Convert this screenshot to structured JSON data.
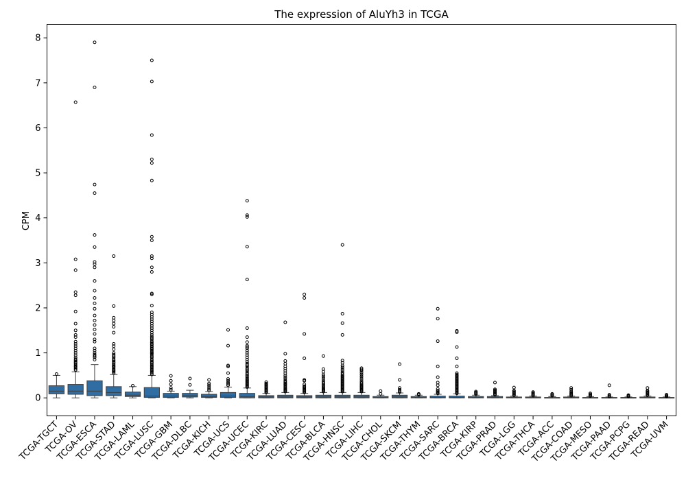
{
  "chart_data": {
    "type": "box",
    "title": "The expression of AluYh3 in TCGA",
    "xlabel": "",
    "ylabel": "CPM",
    "ylim": [
      -0.4,
      8.3
    ],
    "yticks": [
      0,
      1,
      2,
      3,
      4,
      5,
      6,
      7,
      8
    ],
    "grid": false,
    "box_color": "#2f6da3",
    "categories": [
      "TCGA-TGCT",
      "TCGA-OV",
      "TCGA-ESCA",
      "TCGA-STAD",
      "TCGA-LAML",
      "TCGA-LUSC",
      "TCGA-GBM",
      "TCGA-DLBC",
      "TCGA-KICH",
      "TCGA-UCS",
      "TCGA-UCEC",
      "TCGA-KIRC",
      "TCGA-LUAD",
      "TCGA-CESC",
      "TCGA-BLCA",
      "TCGA-HNSC",
      "TCGA-LIHC",
      "TCGA-CHOL",
      "TCGA-SKCM",
      "TCGA-THYM",
      "TCGA-SARC",
      "TCGA-BRCA",
      "TCGA-KIRP",
      "TCGA-PRAD",
      "TCGA-LGG",
      "TCGA-THCA",
      "TCGA-ACC",
      "TCGA-COAD",
      "TCGA-MESO",
      "TCGA-PAAD",
      "TCGA-PCPG",
      "TCGA-READ",
      "TCGA-UVM"
    ],
    "boxes": [
      {
        "whislo": 0.0,
        "q1": 0.09,
        "med": 0.15,
        "q3": 0.27,
        "whishi": 0.5,
        "fliers": [
          0.53
        ]
      },
      {
        "whislo": 0.0,
        "q1": 0.08,
        "med": 0.15,
        "q3": 0.3,
        "whishi": 0.58,
        "fliers": [
          0.62,
          0.65,
          0.68,
          0.7,
          0.72,
          0.75,
          0.78,
          0.8,
          0.83,
          0.86,
          0.9,
          0.95,
          1.0,
          1.05,
          1.1,
          1.15,
          1.2,
          1.25,
          1.35,
          1.4,
          1.5,
          1.65,
          1.92,
          2.28,
          2.35,
          2.84,
          3.08,
          6.57
        ]
      },
      {
        "whislo": 0.0,
        "q1": 0.05,
        "med": 0.15,
        "q3": 0.38,
        "whishi": 0.74,
        "fliers": [
          0.85,
          0.9,
          0.93,
          0.96,
          1.0,
          1.05,
          1.1,
          1.25,
          1.3,
          1.42,
          1.52,
          1.62,
          1.72,
          1.83,
          1.98,
          2.1,
          2.22,
          2.38,
          2.6,
          2.9,
          2.97,
          3.02,
          3.35,
          3.62,
          4.55,
          4.74,
          6.9,
          7.9
        ]
      },
      {
        "whislo": 0.0,
        "q1": 0.05,
        "med": 0.12,
        "q3": 0.25,
        "whishi": 0.52,
        "fliers": [
          0.55,
          0.58,
          0.6,
          0.62,
          0.65,
          0.68,
          0.7,
          0.72,
          0.75,
          0.78,
          0.8,
          0.83,
          0.86,
          0.9,
          0.93,
          0.96,
          1.0,
          1.08,
          1.15,
          1.2,
          1.45,
          1.58,
          1.65,
          1.72,
          1.78,
          2.04,
          3.15
        ]
      },
      {
        "whislo": 0.0,
        "q1": 0.03,
        "med": 0.06,
        "q3": 0.13,
        "whishi": 0.25,
        "fliers": [
          0.27
        ]
      },
      {
        "whislo": 0.0,
        "q1": 0.01,
        "med": 0.04,
        "q3": 0.23,
        "whishi": 0.5,
        "fliers": [
          0.52,
          0.55,
          0.58,
          0.6,
          0.62,
          0.65,
          0.68,
          0.7,
          0.72,
          0.75,
          0.78,
          0.8,
          0.83,
          0.86,
          0.9,
          0.92,
          0.95,
          0.98,
          1.0,
          1.02,
          1.05,
          1.08,
          1.1,
          1.13,
          1.15,
          1.18,
          1.2,
          1.23,
          1.26,
          1.3,
          1.33,
          1.36,
          1.4,
          1.45,
          1.5,
          1.55,
          1.6,
          1.65,
          1.7,
          1.75,
          1.8,
          1.85,
          1.9,
          2.05,
          2.3,
          2.32,
          2.8,
          2.9,
          3.1,
          3.15,
          3.5,
          3.58,
          4.83,
          5.22,
          5.3,
          5.84,
          7.03,
          7.5
        ]
      },
      {
        "whislo": 0.0,
        "q1": 0.01,
        "med": 0.04,
        "q3": 0.1,
        "whishi": 0.15,
        "fliers": [
          0.18,
          0.22,
          0.3,
          0.38,
          0.49
        ]
      },
      {
        "whislo": 0.0,
        "q1": 0.02,
        "med": 0.05,
        "q3": 0.1,
        "whishi": 0.17,
        "fliers": [
          0.29,
          0.43
        ]
      },
      {
        "whislo": 0.0,
        "q1": 0.01,
        "med": 0.03,
        "q3": 0.08,
        "whishi": 0.14,
        "fliers": [
          0.17,
          0.2,
          0.24,
          0.28,
          0.32,
          0.4
        ]
      },
      {
        "whislo": 0.0,
        "q1": 0.01,
        "med": 0.04,
        "q3": 0.12,
        "whishi": 0.24,
        "fliers": [
          0.28,
          0.31,
          0.34,
          0.38,
          0.42,
          0.55,
          0.7,
          0.72,
          1.16,
          1.51
        ]
      },
      {
        "whislo": 0.0,
        "q1": 0.0,
        "med": 0.03,
        "q3": 0.1,
        "whishi": 0.22,
        "fliers": [
          0.24,
          0.26,
          0.28,
          0.3,
          0.32,
          0.34,
          0.36,
          0.38,
          0.4,
          0.42,
          0.45,
          0.48,
          0.5,
          0.53,
          0.56,
          0.6,
          0.63,
          0.66,
          0.7,
          0.73,
          0.76,
          0.8,
          0.85,
          0.9,
          0.95,
          1.0,
          1.05,
          1.1,
          1.13,
          1.16,
          1.24,
          1.35,
          1.55,
          2.63,
          3.36,
          4.02,
          4.06,
          4.38
        ]
      },
      {
        "whislo": 0.0,
        "q1": 0.0,
        "med": 0.02,
        "q3": 0.05,
        "whishi": 0.1,
        "fliers": [
          0.12,
          0.14,
          0.16,
          0.18,
          0.2,
          0.22,
          0.24,
          0.26,
          0.28,
          0.3,
          0.32,
          0.35
        ]
      },
      {
        "whislo": 0.0,
        "q1": 0.0,
        "med": 0.02,
        "q3": 0.06,
        "whishi": 0.12,
        "fliers": [
          0.14,
          0.16,
          0.18,
          0.2,
          0.22,
          0.25,
          0.28,
          0.3,
          0.32,
          0.35,
          0.38,
          0.42,
          0.46,
          0.5,
          0.55,
          0.6,
          0.65,
          0.7,
          0.76,
          0.82,
          0.98,
          1.68
        ]
      },
      {
        "whislo": 0.0,
        "q1": 0.0,
        "med": 0.02,
        "q3": 0.05,
        "whishi": 0.1,
        "fliers": [
          0.12,
          0.14,
          0.16,
          0.18,
          0.2,
          0.22,
          0.24,
          0.26,
          0.3,
          0.38,
          0.4,
          0.88,
          1.42,
          2.22,
          2.3
        ]
      },
      {
        "whislo": 0.0,
        "q1": 0.0,
        "med": 0.02,
        "q3": 0.06,
        "whishi": 0.12,
        "fliers": [
          0.14,
          0.16,
          0.18,
          0.2,
          0.22,
          0.25,
          0.28,
          0.3,
          0.33,
          0.36,
          0.4,
          0.44,
          0.48,
          0.52,
          0.58,
          0.64,
          0.93
        ]
      },
      {
        "whislo": 0.0,
        "q1": 0.0,
        "med": 0.02,
        "q3": 0.06,
        "whishi": 0.12,
        "fliers": [
          0.14,
          0.16,
          0.18,
          0.2,
          0.22,
          0.24,
          0.26,
          0.28,
          0.3,
          0.32,
          0.34,
          0.36,
          0.38,
          0.4,
          0.42,
          0.44,
          0.46,
          0.48,
          0.5,
          0.53,
          0.56,
          0.6,
          0.64,
          0.68,
          0.72,
          0.78,
          0.83,
          1.4,
          1.66,
          1.87,
          3.4
        ]
      },
      {
        "whislo": 0.0,
        "q1": 0.0,
        "med": 0.02,
        "q3": 0.06,
        "whishi": 0.12,
        "fliers": [
          0.14,
          0.16,
          0.18,
          0.2,
          0.22,
          0.24,
          0.26,
          0.28,
          0.3,
          0.33,
          0.36,
          0.4,
          0.44,
          0.48,
          0.52,
          0.56,
          0.6,
          0.63,
          0.66
        ]
      },
      {
        "whislo": 0.0,
        "q1": 0.0,
        "med": 0.01,
        "q3": 0.03,
        "whishi": 0.06,
        "fliers": [
          0.09,
          0.15
        ]
      },
      {
        "whislo": 0.0,
        "q1": 0.0,
        "med": 0.02,
        "q3": 0.06,
        "whishi": 0.11,
        "fliers": [
          0.13,
          0.15,
          0.18,
          0.22,
          0.4,
          0.75
        ]
      },
      {
        "whislo": 0.0,
        "q1": 0.0,
        "med": 0.01,
        "q3": 0.03,
        "whishi": 0.06,
        "fliers": [
          0.07,
          0.08,
          0.09
        ]
      },
      {
        "whislo": 0.0,
        "q1": 0.0,
        "med": 0.01,
        "q3": 0.04,
        "whishi": 0.08,
        "fliers": [
          0.1,
          0.12,
          0.14,
          0.16,
          0.2,
          0.28,
          0.34,
          0.46,
          0.7,
          1.26,
          1.76,
          1.98
        ]
      },
      {
        "whislo": 0.0,
        "q1": 0.0,
        "med": 0.01,
        "q3": 0.04,
        "whishi": 0.09,
        "fliers": [
          0.1,
          0.12,
          0.14,
          0.16,
          0.18,
          0.2,
          0.22,
          0.24,
          0.26,
          0.28,
          0.3,
          0.32,
          0.34,
          0.36,
          0.38,
          0.4,
          0.42,
          0.44,
          0.46,
          0.48,
          0.5,
          0.52,
          0.55,
          0.7,
          0.88,
          1.13,
          1.46,
          1.49
        ]
      },
      {
        "whislo": 0.0,
        "q1": 0.0,
        "med": 0.01,
        "q3": 0.03,
        "whishi": 0.06,
        "fliers": [
          0.08,
          0.1,
          0.12,
          0.14
        ]
      },
      {
        "whislo": 0.0,
        "q1": 0.0,
        "med": 0.01,
        "q3": 0.03,
        "whishi": 0.05,
        "fliers": [
          0.07,
          0.09,
          0.11,
          0.13,
          0.15,
          0.17,
          0.19,
          0.34
        ]
      },
      {
        "whislo": 0.0,
        "q1": 0.0,
        "med": 0.01,
        "q3": 0.02,
        "whishi": 0.04,
        "fliers": [
          0.06,
          0.08,
          0.1,
          0.12,
          0.14,
          0.16,
          0.23
        ]
      },
      {
        "whislo": 0.0,
        "q1": 0.0,
        "med": 0.0,
        "q3": 0.02,
        "whishi": 0.04,
        "fliers": [
          0.05,
          0.07,
          0.09,
          0.11,
          0.13
        ]
      },
      {
        "whislo": 0.0,
        "q1": 0.0,
        "med": 0.0,
        "q3": 0.01,
        "whishi": 0.03,
        "fliers": [
          0.05,
          0.07,
          0.09
        ]
      },
      {
        "whislo": 0.0,
        "q1": 0.0,
        "med": 0.0,
        "q3": 0.02,
        "whishi": 0.04,
        "fliers": [
          0.05,
          0.07,
          0.09,
          0.11,
          0.14,
          0.18,
          0.22
        ]
      },
      {
        "whislo": 0.0,
        "q1": 0.0,
        "med": 0.0,
        "q3": 0.01,
        "whishi": 0.03,
        "fliers": [
          0.04,
          0.06,
          0.08,
          0.1
        ]
      },
      {
        "whislo": 0.0,
        "q1": 0.0,
        "med": 0.0,
        "q3": 0.01,
        "whishi": 0.02,
        "fliers": [
          0.03,
          0.05,
          0.07,
          0.28
        ]
      },
      {
        "whislo": 0.0,
        "q1": 0.0,
        "med": 0.0,
        "q3": 0.01,
        "whishi": 0.02,
        "fliers": [
          0.03,
          0.04,
          0.05,
          0.06
        ]
      },
      {
        "whislo": 0.0,
        "q1": 0.0,
        "med": 0.0,
        "q3": 0.02,
        "whishi": 0.04,
        "fliers": [
          0.06,
          0.08,
          0.1,
          0.12,
          0.14,
          0.16,
          0.22
        ]
      },
      {
        "whislo": 0.0,
        "q1": 0.0,
        "med": 0.0,
        "q3": 0.01,
        "whishi": 0.02,
        "fliers": [
          0.03,
          0.04,
          0.06,
          0.07
        ]
      }
    ]
  }
}
